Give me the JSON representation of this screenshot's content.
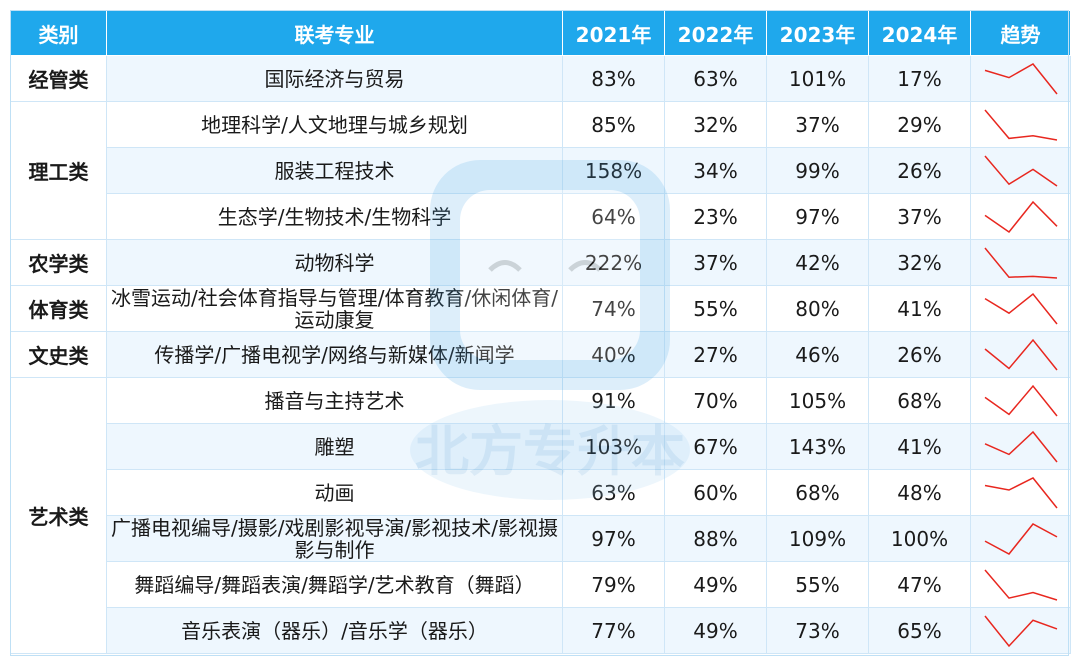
{
  "header": [
    "类别",
    "联考专业",
    "2021年",
    "2022年",
    "2023年",
    "2024年",
    "趋势"
  ],
  "groups": [
    {
      "category": "经管类",
      "rows": [
        {
          "major": "国际经济与贸易",
          "values": [
            "83%",
            "63%",
            "101%",
            "17%"
          ],
          "nums": [
            83,
            63,
            101,
            17
          ]
        }
      ]
    },
    {
      "category": "理工类",
      "rows": [
        {
          "major": "地理科学/人文地理与城乡规划",
          "values": [
            "85%",
            "32%",
            "37%",
            "29%"
          ],
          "nums": [
            85,
            32,
            37,
            29
          ]
        },
        {
          "major": "服装工程技术",
          "values": [
            "158%",
            "34%",
            "99%",
            "26%"
          ],
          "nums": [
            158,
            34,
            99,
            26
          ]
        },
        {
          "major": "生态学/生物技术/生物科学",
          "values": [
            "64%",
            "23%",
            "97%",
            "37%"
          ],
          "nums": [
            64,
            23,
            97,
            37
          ]
        }
      ]
    },
    {
      "category": "农学类",
      "rows": [
        {
          "major": "动物科学",
          "values": [
            "222%",
            "37%",
            "42%",
            "32%"
          ],
          "nums": [
            222,
            37,
            42,
            32
          ]
        }
      ]
    },
    {
      "category": "体育类",
      "rows": [
        {
          "major": "冰雪运动/社会体育指导与管理/体育教育/休闲体育/运动康复",
          "values": [
            "74%",
            "55%",
            "80%",
            "41%"
          ],
          "nums": [
            74,
            55,
            80,
            41
          ]
        }
      ]
    },
    {
      "category": "文史类",
      "rows": [
        {
          "major": "传播学/广播电视学/网络与新媒体/新闻学",
          "values": [
            "40%",
            "27%",
            "46%",
            "26%"
          ],
          "nums": [
            40,
            27,
            46,
            26
          ]
        }
      ]
    },
    {
      "category": "艺术类",
      "rows": [
        {
          "major": "播音与主持艺术",
          "values": [
            "91%",
            "70%",
            "105%",
            "68%"
          ],
          "nums": [
            91,
            70,
            105,
            68
          ]
        },
        {
          "major": "雕塑",
          "values": [
            "103%",
            "67%",
            "143%",
            "41%"
          ],
          "nums": [
            103,
            67,
            143,
            41
          ]
        },
        {
          "major": "动画",
          "values": [
            "63%",
            "60%",
            "68%",
            "48%"
          ],
          "nums": [
            63,
            60,
            68,
            48
          ]
        },
        {
          "major": "广播电视编导/摄影/戏剧影视导演/影视技术/影视摄影与制作",
          "values": [
            "97%",
            "88%",
            "109%",
            "100%"
          ],
          "nums": [
            97,
            88,
            109,
            100
          ]
        },
        {
          "major": "舞蹈编导/舞蹈表演/舞蹈学/艺术教育（舞蹈）",
          "values": [
            "79%",
            "49%",
            "55%",
            "47%"
          ],
          "nums": [
            79,
            49,
            55,
            47
          ]
        },
        {
          "major": "音乐表演（器乐）/音乐学（器乐）",
          "values": [
            "77%",
            "49%",
            "73%",
            "65%"
          ],
          "nums": [
            77,
            49,
            73,
            65
          ]
        }
      ]
    }
  ],
  "watermark": "北方专升本",
  "trend_color": "#e8271f"
}
